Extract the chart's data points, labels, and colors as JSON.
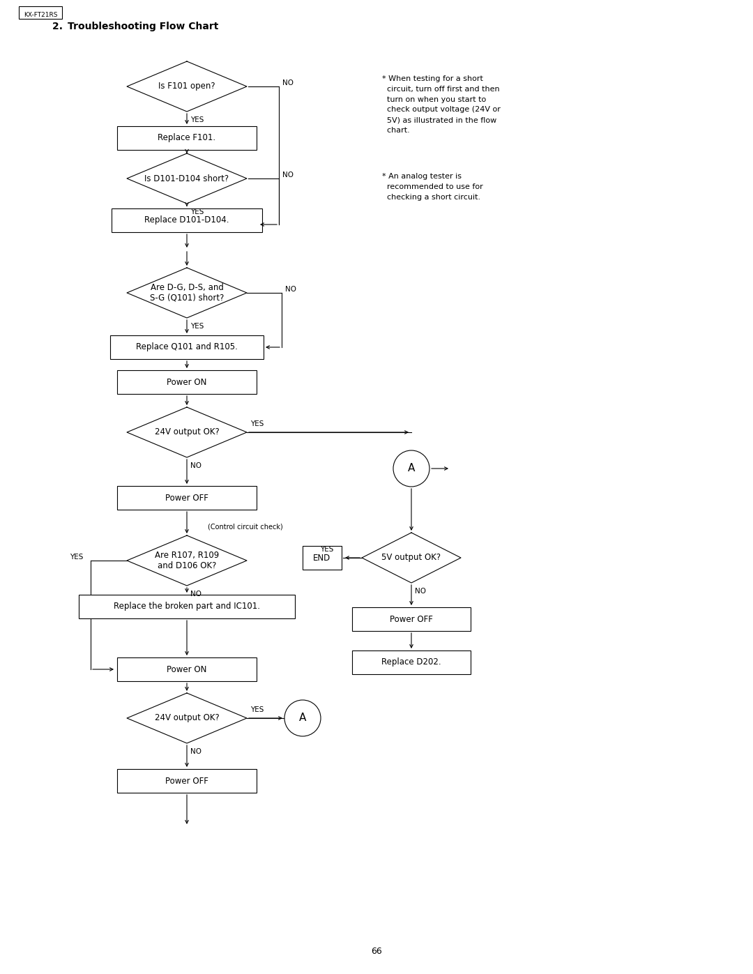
{
  "title": "2. Troubleshooting Flow Chart",
  "header_label": "KX-FT21RS",
  "note1": "* When testing for a short\n  circuit, turn off first and then\n  turn on when you start to\n  check output voltage (24V or\n  5V) as illustrated in the flow\n  chart.",
  "note2": "* An analog tester is\n  recommended to use for\n  checking a short circuit.",
  "page_number": "66",
  "background_color": "#ffffff",
  "line_color": "#000000",
  "text_color": "#000000",
  "font_size": 8.5,
  "title_font_size": 10
}
